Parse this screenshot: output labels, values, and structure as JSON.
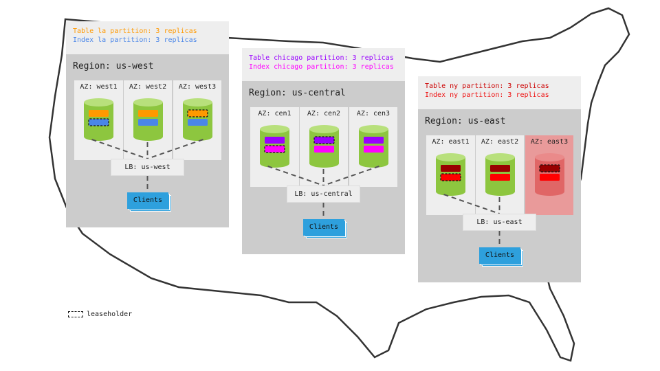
{
  "regions": [
    {
      "name": "us-west",
      "title": "Region: us-west",
      "lines": [
        {
          "text": "Table la partition: 3 replicas",
          "color": "#ff9900"
        },
        {
          "text": "Index la partition: 3 replicas",
          "color": "#4a86e8"
        }
      ],
      "table_color": "#ff9900",
      "index_color": "#4a86e8",
      "azs": [
        {
          "label": "AZ: west1",
          "leaseholder": "index",
          "failed": false
        },
        {
          "label": "AZ: west2",
          "leaseholder": null,
          "failed": false
        },
        {
          "label": "AZ: west3",
          "leaseholder": "table",
          "failed": false
        }
      ],
      "lb": "LB: us-west",
      "clients": "Clients"
    },
    {
      "name": "us-central",
      "title": "Region: us-central",
      "lines": [
        {
          "text": "Table chicago partition: 3 replicas",
          "color": "#9900ff"
        },
        {
          "text": "Index chicago partition: 3 replicas",
          "color": "#ff00ff"
        }
      ],
      "table_color": "#9900ff",
      "index_color": "#ff00ff",
      "azs": [
        {
          "label": "AZ: cen1",
          "leaseholder": "index",
          "failed": false
        },
        {
          "label": "AZ: cen2",
          "leaseholder": "table",
          "failed": false
        },
        {
          "label": "AZ: cen3",
          "leaseholder": null,
          "failed": false
        }
      ],
      "lb": "LB: us-central",
      "clients": "Clients"
    },
    {
      "name": "us-east",
      "title": "Region: us-east",
      "lines": [
        {
          "text": "Table ny partition: 3 replicas",
          "color": "#cc0000"
        },
        {
          "text": "Index ny partition: 3 replicas",
          "color": "#ee1111"
        }
      ],
      "table_color": "#990000",
      "index_color": "#ff0000",
      "azs": [
        {
          "label": "AZ: east1",
          "leaseholder": "index",
          "failed": false
        },
        {
          "label": "AZ: east2",
          "leaseholder": null,
          "failed": false
        },
        {
          "label": "AZ: east3",
          "leaseholder": "table",
          "failed": true
        }
      ],
      "lb": "LB: us-east",
      "clients": "Clients"
    }
  ],
  "legend": {
    "label": "leaseholder"
  },
  "colors": {
    "node": "#8dc63f",
    "node_top": "#b8e07c",
    "failed_node": "#e06666",
    "failed_top": "#ea8a8a",
    "clients": "#2ea0dd"
  }
}
